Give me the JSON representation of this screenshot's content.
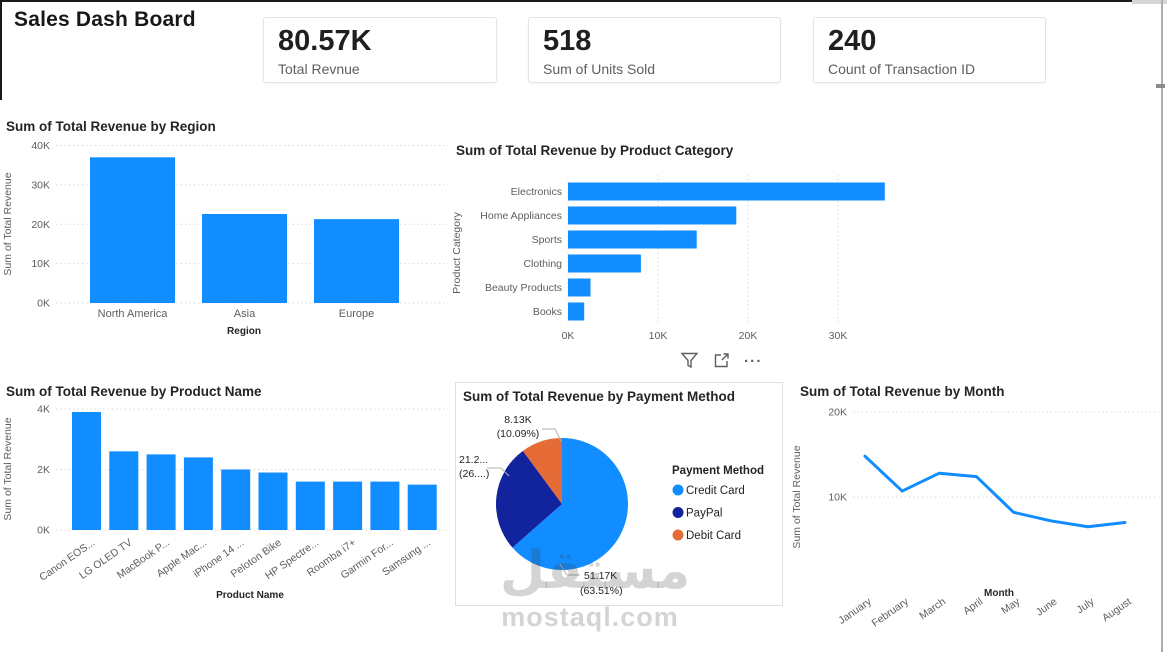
{
  "header": {
    "title": "Sales Dash Board"
  },
  "kpi_cards": [
    {
      "value": "80.57K",
      "label": "Total Revnue"
    },
    {
      "value": "518",
      "label": "Sum of Units Sold"
    },
    {
      "value": "240",
      "label": "Count of Transaction ID"
    }
  ],
  "toolbar": {
    "more_options": "..."
  },
  "watermark": {
    "logo_text": "مستقل",
    "site": "mostaql.com"
  },
  "colors": {
    "primary_blue": "#118DFF",
    "navy": "#12239E",
    "orange": "#E66C37",
    "text_dark": "#252423",
    "text_gray": "#605E5C",
    "gridline": "#D9D9D9",
    "leader_line": "#B3B0AD"
  },
  "chart_data": [
    {
      "id": "revenue_by_region",
      "type": "bar",
      "title": "Sum of Total Revenue by Region",
      "xlabel": "Region",
      "ylabel": "Sum of Total Revenue",
      "categories": [
        "North America",
        "Asia",
        "Europe"
      ],
      "values": [
        37000,
        22600,
        21300
      ],
      "ylim": [
        0,
        40000
      ],
      "yticks": [
        "0K",
        "10K",
        "20K",
        "30K",
        "40K"
      ],
      "grid": "dotted-horizontal"
    },
    {
      "id": "revenue_by_product_category",
      "type": "bar-horizontal",
      "title": "Sum of Total Revenue by Product Category",
      "ylabel": "Product Category",
      "categories": [
        "Electronics",
        "Home Appliances",
        "Sports",
        "Clothing",
        "Beauty Products",
        "Books"
      ],
      "values": [
        35200,
        18700,
        14300,
        8100,
        2500,
        1800
      ],
      "xlim": [
        0,
        40000
      ],
      "xticks": [
        "0K",
        "10K",
        "20K",
        "30K"
      ],
      "grid": "dotted-vertical"
    },
    {
      "id": "revenue_by_product_name",
      "type": "bar",
      "title": "Sum of Total Revenue by Product Name",
      "xlabel": "Product Name",
      "ylabel": "Sum of Total Revenue",
      "categories": [
        "Canon EOS...",
        "LG OLED TV",
        "MacBook P...",
        "Apple Mac...",
        "iPhone 14 ...",
        "Peloton Bike",
        "HP Spectre...",
        "Roomba i7+",
        "Garmin For...",
        "Samsung ..."
      ],
      "values": [
        3900,
        2600,
        2500,
        2400,
        2000,
        1900,
        1600,
        1600,
        1600,
        1500
      ],
      "ylim": [
        0,
        4000
      ],
      "yticks": [
        "0K",
        "2K",
        "4K"
      ],
      "grid": "dotted-horizontal"
    },
    {
      "id": "revenue_by_payment_method",
      "type": "pie",
      "title": "Sum of Total Revenue by Payment Method",
      "legend_title": "Payment Method",
      "legend_position": "right",
      "slices": [
        {
          "label": "Credit Card",
          "value_label": "51.17K",
          "pct": 63.51,
          "pct_label": "(63.51%)",
          "color": "#118DFF"
        },
        {
          "label": "PayPal",
          "value_label": "21.2...",
          "pct": 26.4,
          "pct_label": "(26....)",
          "color": "#12239E"
        },
        {
          "label": "Debit Card",
          "value_label": "8.13K",
          "pct": 10.09,
          "pct_label": "(10.09%)",
          "color": "#E66C37"
        }
      ]
    },
    {
      "id": "revenue_by_month",
      "type": "line",
      "title": "Sum of Total Revenue by Month",
      "xlabel": "Month",
      "ylabel": "Sum of Total Revenue",
      "categories": [
        "January",
        "February",
        "March",
        "April",
        "May",
        "June",
        "July",
        "August"
      ],
      "values": [
        14800,
        10700,
        12800,
        12400,
        8200,
        7200,
        6500,
        7000
      ],
      "ylim": [
        0,
        20000
      ],
      "yticks": [
        "10K",
        "20K"
      ],
      "grid": "dotted-horizontal"
    }
  ]
}
